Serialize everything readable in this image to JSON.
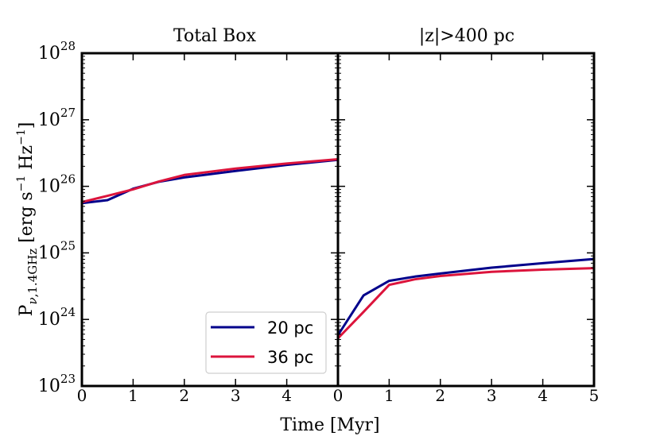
{
  "chart_data": [
    {
      "type": "line",
      "title": "Total Box",
      "xlabel": "Time [Myr]",
      "ylabel": "P_{ν,1.4GHz} [erg s^-1 Hz^-1]",
      "xlim": [
        0,
        5
      ],
      "ylim": [
        1e+23,
        1e+28
      ],
      "yscale": "log",
      "x_ticks": [
        "0",
        "1",
        "2",
        "3",
        "4"
      ],
      "y_ticks": [
        {
          "base": "10",
          "exp": "23"
        },
        {
          "base": "10",
          "exp": "24"
        },
        {
          "base": "10",
          "exp": "25"
        },
        {
          "base": "10",
          "exp": "26"
        },
        {
          "base": "10",
          "exp": "27"
        },
        {
          "base": "10",
          "exp": "28"
        }
      ],
      "legend_position": "lower-right",
      "series": [
        {
          "name": "20 pc",
          "color": "#00008b",
          "x": [
            0,
            0.5,
            1,
            1.5,
            2,
            3,
            4,
            5
          ],
          "y": [
            5.6e+25,
            6.2e+25,
            9.2e+25,
            1.17e+26,
            1.36e+26,
            1.7e+26,
            2.1e+26,
            2.5e+26
          ]
        },
        {
          "name": "36 pc",
          "color": "#dc143c",
          "x": [
            0,
            0.5,
            1,
            1.5,
            2,
            3,
            4,
            5
          ],
          "y": [
            5.8e+25,
            7.2e+25,
            9e+25,
            1.18e+26,
            1.48e+26,
            1.85e+26,
            2.2e+26,
            2.55e+26
          ]
        }
      ]
    },
    {
      "type": "line",
      "title": "|z|>400 pc",
      "xlim": [
        0,
        5
      ],
      "ylim": [
        1e+23,
        1e+28
      ],
      "yscale": "log",
      "x_ticks": [
        "0",
        "1",
        "2",
        "3",
        "4",
        "5"
      ],
      "series": [
        {
          "name": "20 pc",
          "color": "#00008b",
          "x": [
            0,
            0.5,
            1,
            1.5,
            2,
            3,
            4,
            5
          ],
          "y": [
            5.8e+23,
            2.3e+24,
            3.8e+24,
            4.4e+24,
            4.9e+24,
            6e+24,
            7e+24,
            8.1e+24
          ]
        },
        {
          "name": "36 pc",
          "color": "#dc143c",
          "x": [
            0,
            0.5,
            1,
            1.5,
            2,
            3,
            4,
            5
          ],
          "y": [
            5.2e+23,
            1.3e+24,
            3.3e+24,
            4e+24,
            4.5e+24,
            5.2e+24,
            5.6e+24,
            5.9e+24
          ]
        }
      ]
    }
  ]
}
